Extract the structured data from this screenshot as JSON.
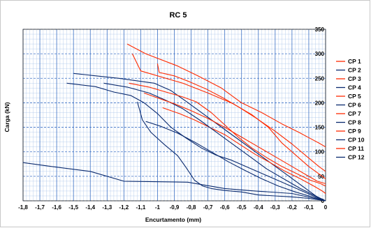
{
  "chart_data": {
    "type": "line",
    "title": "RC 5",
    "xlabel": "Encurtamento (mm)",
    "ylabel": "Carga (kN)",
    "xlim": [
      -1.8,
      0
    ],
    "ylim": [
      0,
      350
    ],
    "x_ticks": [
      "-1,8",
      "-1,7",
      "-1,6",
      "-1,5",
      "-1,4",
      "-1,3",
      "-1,2",
      "-1,1",
      "-1",
      "-0,9",
      "-0,8",
      "-0,7",
      "-0,6",
      "-0,5",
      "-0,4",
      "-0,3",
      "-0,2",
      "-0,1",
      "0"
    ],
    "y_ticks": [
      "0",
      "50",
      "100",
      "150",
      "200",
      "250",
      "300",
      "350"
    ],
    "grid": true,
    "legend_position": "right",
    "colors": {
      "red": "#ff2a00",
      "navy": "#0a2a6e",
      "grid_major": "#3a6fc4",
      "grid_minor": "#a9c4ea"
    },
    "series": [
      {
        "name": "CP 1",
        "color": "#ff2a00",
        "points": [
          [
            -1.18,
            320
          ],
          [
            -1.07,
            300
          ],
          [
            -0.88,
            275
          ],
          [
            -0.76,
            255
          ],
          [
            -0.62,
            230
          ],
          [
            -0.5,
            200
          ],
          [
            -0.38,
            180
          ],
          [
            -0.26,
            157
          ],
          [
            -0.16,
            140
          ],
          [
            -0.09,
            127
          ],
          [
            -0.04,
            118
          ],
          [
            0,
            110
          ]
        ]
      },
      {
        "name": "CP 2",
        "color": "#0a2a6e",
        "points": [
          [
            -1.5,
            260
          ],
          [
            -1.23,
            250
          ],
          [
            -1.02,
            240
          ],
          [
            -0.92,
            225
          ],
          [
            -0.83,
            203
          ],
          [
            -0.73,
            178
          ],
          [
            -0.63,
            153
          ],
          [
            -0.53,
            128
          ],
          [
            -0.43,
            103
          ],
          [
            -0.33,
            78
          ],
          [
            -0.23,
            53
          ],
          [
            -0.13,
            28
          ],
          [
            -0.05,
            8
          ],
          [
            0,
            0
          ]
        ]
      },
      {
        "name": "CP 3",
        "color": "#ff2a00",
        "points": [
          [
            -1.15,
            300
          ],
          [
            -1.1,
            265
          ],
          [
            -0.85,
            240
          ],
          [
            -0.7,
            220
          ],
          [
            -0.55,
            198
          ],
          [
            -0.44,
            176
          ],
          [
            -0.34,
            150
          ],
          [
            -0.26,
            118
          ],
          [
            -0.18,
            94
          ],
          [
            -0.1,
            70
          ],
          [
            -0.04,
            55
          ],
          [
            0,
            45
          ]
        ]
      },
      {
        "name": "CP 4",
        "color": "#0a2a6e",
        "points": [
          [
            -1.54,
            240
          ],
          [
            -1.37,
            233
          ],
          [
            -1.26,
            222
          ],
          [
            -1.16,
            215
          ],
          [
            -1.08,
            200
          ],
          [
            -1.0,
            178
          ],
          [
            -0.92,
            150
          ],
          [
            -0.83,
            128
          ],
          [
            -0.74,
            108
          ],
          [
            -0.65,
            93
          ],
          [
            -0.56,
            83
          ],
          [
            -0.46,
            68
          ],
          [
            -0.36,
            53
          ],
          [
            -0.26,
            38
          ],
          [
            -0.16,
            23
          ],
          [
            -0.06,
            8
          ],
          [
            0,
            0
          ]
        ]
      },
      {
        "name": "CP 5",
        "color": "#ff2a00",
        "points": [
          [
            -1.17,
            240
          ],
          [
            -1.05,
            232
          ],
          [
            -0.95,
            222
          ],
          [
            -0.85,
            212
          ],
          [
            -0.77,
            202
          ],
          [
            -0.68,
            180
          ],
          [
            -0.6,
            155
          ],
          [
            -0.52,
            130
          ],
          [
            -0.44,
            108
          ],
          [
            -0.35,
            88
          ],
          [
            -0.26,
            70
          ],
          [
            -0.17,
            55
          ],
          [
            -0.09,
            42
          ],
          [
            -0.03,
            35
          ],
          [
            0,
            30
          ]
        ]
      },
      {
        "name": "CP 6",
        "color": "#0a2a6e",
        "points": [
          [
            -1.8,
            78
          ],
          [
            -1.63,
            70
          ],
          [
            -1.4,
            60
          ],
          [
            -1.2,
            40
          ],
          [
            -0.82,
            38
          ],
          [
            -0.6,
            25
          ],
          [
            -0.42,
            20
          ],
          [
            -0.2,
            15
          ],
          [
            0,
            0
          ]
        ]
      },
      {
        "name": "CP 7",
        "color": "#ff2a00",
        "points": [
          [
            -1.0,
            280
          ],
          [
            -0.99,
            262
          ],
          [
            -0.9,
            255
          ],
          [
            -0.81,
            243
          ],
          [
            -0.71,
            228
          ],
          [
            -0.61,
            210
          ],
          [
            -0.51,
            190
          ],
          [
            -0.41,
            168
          ],
          [
            -0.3,
            142
          ],
          [
            -0.2,
            116
          ],
          [
            -0.11,
            90
          ],
          [
            -0.04,
            70
          ],
          [
            0,
            60
          ]
        ]
      },
      {
        "name": "CP 8",
        "color": "#0a2a6e",
        "points": [
          [
            -1.12,
            202
          ],
          [
            -1.09,
            165
          ],
          [
            -1.04,
            140
          ],
          [
            -0.96,
            115
          ],
          [
            -0.88,
            92
          ],
          [
            -0.83,
            68
          ],
          [
            -0.78,
            42
          ],
          [
            -0.73,
            30
          ],
          [
            -0.68,
            25
          ],
          [
            -0.6,
            21
          ],
          [
            -0.5,
            18
          ],
          [
            -0.4,
            12
          ],
          [
            -0.3,
            10
          ],
          [
            -0.2,
            8
          ],
          [
            -0.1,
            5
          ],
          [
            0,
            0
          ]
        ]
      },
      {
        "name": "CP 9",
        "color": "#ff2a00",
        "points": [
          [
            -0.97,
            190
          ],
          [
            -0.87,
            178
          ],
          [
            -0.78,
            165
          ],
          [
            -0.69,
            150
          ],
          [
            -0.6,
            135
          ],
          [
            -0.51,
            115
          ],
          [
            -0.42,
            95
          ],
          [
            -0.33,
            78
          ],
          [
            -0.24,
            60
          ],
          [
            -0.15,
            45
          ],
          [
            -0.07,
            30
          ],
          [
            -0.02,
            20
          ],
          [
            0,
            15
          ]
        ]
      },
      {
        "name": "CP 10",
        "color": "#0a2a6e",
        "points": [
          [
            -1.32,
            240
          ],
          [
            -1.18,
            232
          ],
          [
            -1.05,
            220
          ],
          [
            -0.95,
            205
          ],
          [
            -0.85,
            188
          ],
          [
            -0.75,
            165
          ],
          [
            -0.65,
            140
          ],
          [
            -0.55,
            115
          ],
          [
            -0.45,
            90
          ],
          [
            -0.35,
            65
          ],
          [
            -0.25,
            45
          ],
          [
            -0.15,
            25
          ],
          [
            -0.06,
            10
          ],
          [
            0,
            0
          ]
        ]
      },
      {
        "name": "CP 11",
        "color": "#ff2a00",
        "points": [
          [
            -1.08,
            220
          ],
          [
            -1.0,
            210
          ],
          [
            -0.9,
            198
          ],
          [
            -0.8,
            184
          ],
          [
            -0.7,
            168
          ],
          [
            -0.6,
            150
          ],
          [
            -0.5,
            130
          ],
          [
            -0.4,
            110
          ],
          [
            -0.3,
            90
          ],
          [
            -0.2,
            70
          ],
          [
            -0.11,
            52
          ],
          [
            -0.05,
            40
          ],
          [
            0,
            35
          ]
        ]
      },
      {
        "name": "CP 12",
        "color": "#0a2a6e",
        "points": [
          [
            -1.07,
            162
          ],
          [
            -0.98,
            152
          ],
          [
            -0.88,
            138
          ],
          [
            -0.78,
            120
          ],
          [
            -0.68,
            100
          ],
          [
            -0.58,
            80
          ],
          [
            -0.48,
            62
          ],
          [
            -0.38,
            45
          ],
          [
            -0.28,
            30
          ],
          [
            -0.18,
            18
          ],
          [
            -0.08,
            8
          ],
          [
            0,
            0
          ]
        ]
      }
    ]
  }
}
